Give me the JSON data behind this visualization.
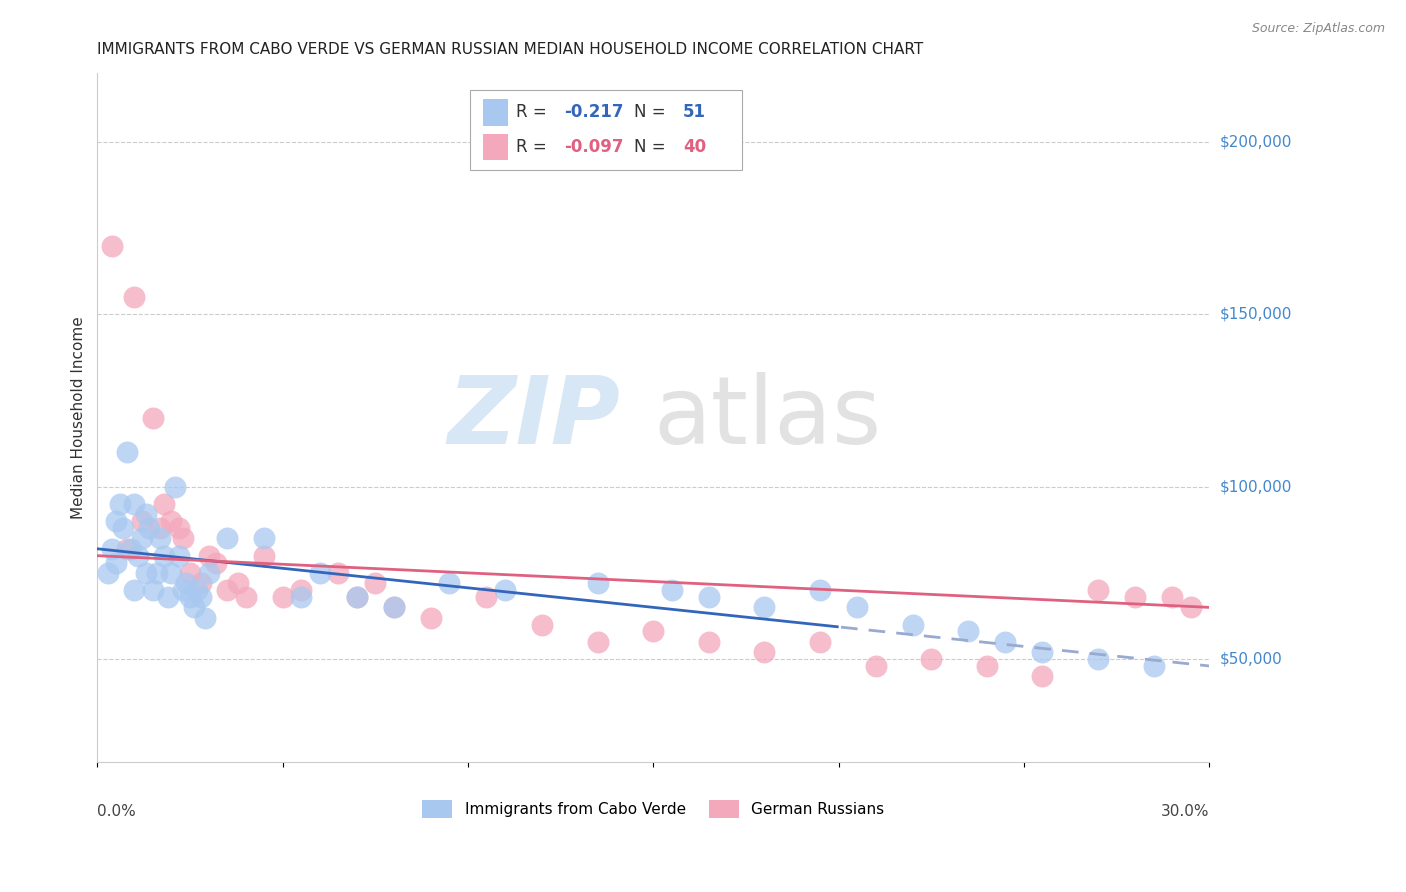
{
  "title": "IMMIGRANTS FROM CABO VERDE VS GERMAN RUSSIAN MEDIAN HOUSEHOLD INCOME CORRELATION CHART",
  "source": "Source: ZipAtlas.com",
  "ylabel": "Median Household Income",
  "y_tick_values": [
    50000,
    100000,
    150000,
    200000
  ],
  "y_tick_labels": [
    "$50,000",
    "$100,000",
    "$150,000",
    "$200,000"
  ],
  "xlim": [
    0.0,
    30.0
  ],
  "ylim": [
    20000,
    220000
  ],
  "watermark_zip": "ZIP",
  "watermark_atlas": "atlas",
  "legend": {
    "blue_label": "Immigrants from Cabo Verde",
    "pink_label": "German Russians",
    "blue_R": "-0.217",
    "blue_N": "51",
    "pink_R": "-0.097",
    "pink_N": "40"
  },
  "blue_color": "#a8c8f0",
  "pink_color": "#f4a8bc",
  "blue_line_color": "#3366bb",
  "blue_dash_color": "#99aad0",
  "pink_line_color": "#e06080",
  "blue_scatter_x": [
    0.3,
    0.4,
    0.5,
    0.5,
    0.6,
    0.7,
    0.8,
    0.9,
    1.0,
    1.0,
    1.1,
    1.2,
    1.3,
    1.3,
    1.4,
    1.5,
    1.6,
    1.7,
    1.8,
    1.9,
    2.0,
    2.1,
    2.2,
    2.3,
    2.4,
    2.5,
    2.6,
    2.7,
    2.8,
    2.9,
    3.0,
    3.5,
    4.5,
    5.5,
    6.0,
    7.0,
    8.0,
    9.5,
    11.0,
    13.5,
    15.5,
    16.5,
    18.0,
    19.5,
    20.5,
    22.0,
    23.5,
    24.5,
    25.5,
    27.0,
    28.5
  ],
  "blue_scatter_y": [
    75000,
    82000,
    90000,
    78000,
    95000,
    88000,
    110000,
    82000,
    95000,
    70000,
    80000,
    85000,
    92000,
    75000,
    88000,
    70000,
    75000,
    85000,
    80000,
    68000,
    75000,
    100000,
    80000,
    70000,
    72000,
    68000,
    65000,
    70000,
    68000,
    62000,
    75000,
    85000,
    85000,
    68000,
    75000,
    68000,
    65000,
    72000,
    70000,
    72000,
    70000,
    68000,
    65000,
    70000,
    65000,
    60000,
    58000,
    55000,
    52000,
    50000,
    48000
  ],
  "pink_scatter_x": [
    0.4,
    0.8,
    1.0,
    1.2,
    1.5,
    1.7,
    1.8,
    2.0,
    2.2,
    2.3,
    2.5,
    2.8,
    3.0,
    3.2,
    3.5,
    3.8,
    4.0,
    4.5,
    5.0,
    5.5,
    6.5,
    7.0,
    7.5,
    8.0,
    9.0,
    10.5,
    12.0,
    13.5,
    15.0,
    16.5,
    18.0,
    19.5,
    21.0,
    22.5,
    24.0,
    25.5,
    27.0,
    28.0,
    29.0,
    29.5
  ],
  "pink_scatter_y": [
    170000,
    82000,
    155000,
    90000,
    120000,
    88000,
    95000,
    90000,
    88000,
    85000,
    75000,
    72000,
    80000,
    78000,
    70000,
    72000,
    68000,
    80000,
    68000,
    70000,
    75000,
    68000,
    72000,
    65000,
    62000,
    68000,
    60000,
    55000,
    58000,
    55000,
    52000,
    55000,
    48000,
    50000,
    48000,
    45000,
    70000,
    68000,
    68000,
    65000
  ],
  "background_color": "#ffffff",
  "grid_color": "#cccccc"
}
